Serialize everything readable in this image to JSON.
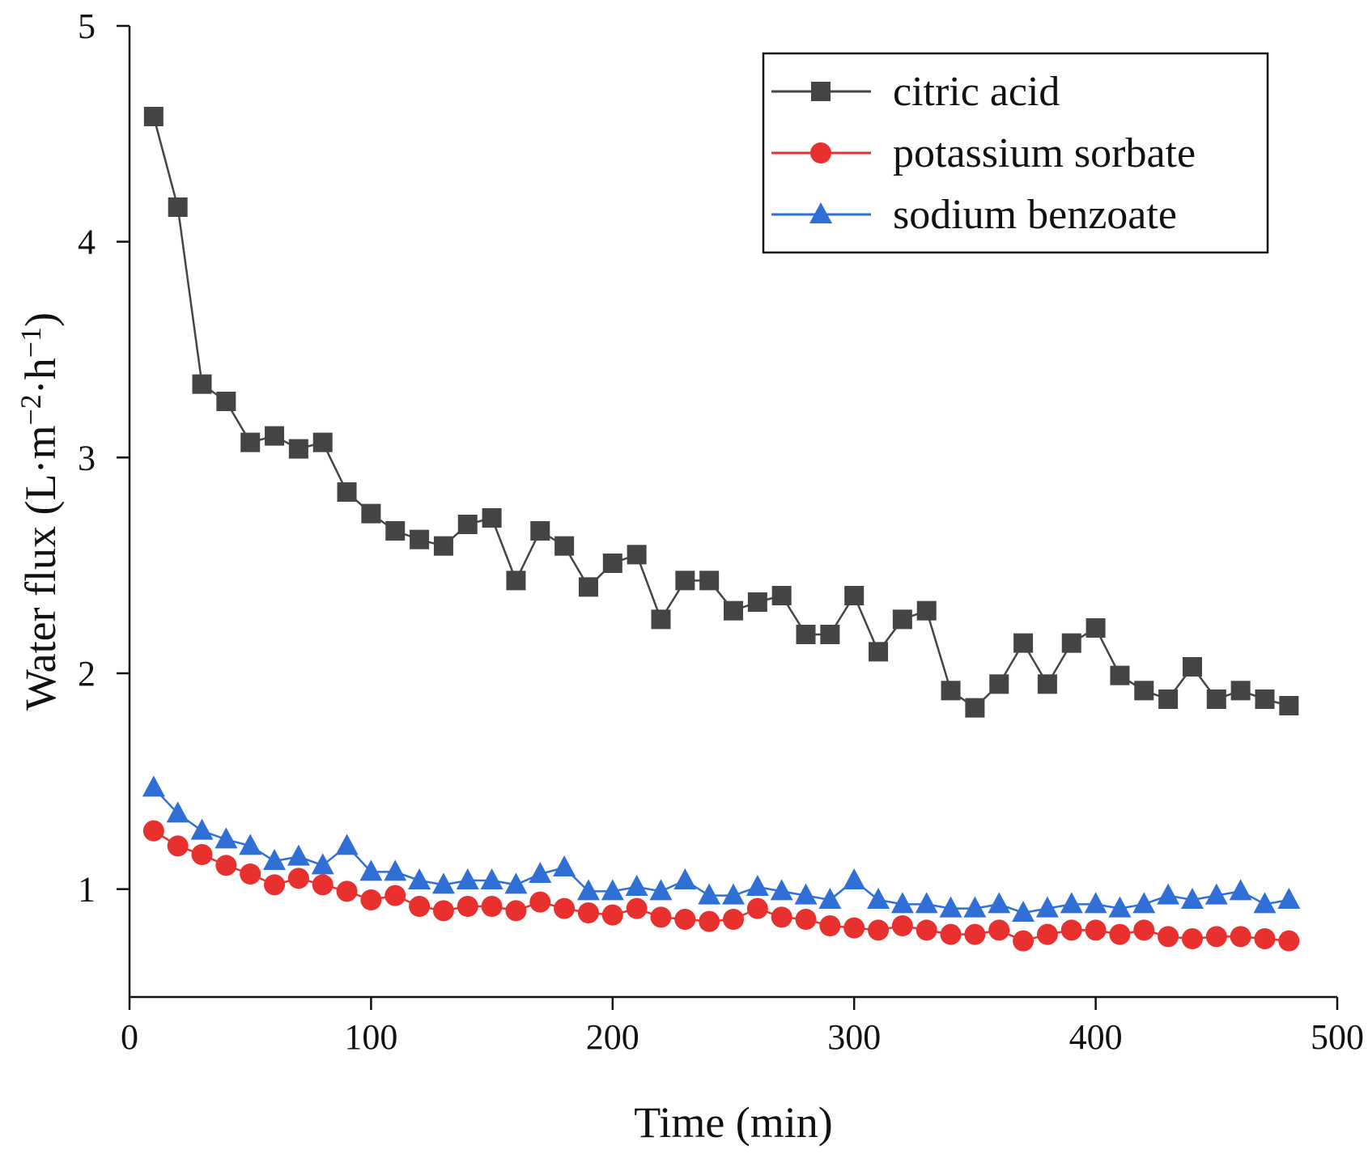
{
  "chart_data": {
    "type": "line",
    "title": "",
    "xlabel": "Time (min)",
    "ylabel_main": "Water flux (L·m",
    "ylabel_sup1": "−2",
    "ylabel_mid": "·h",
    "ylabel_sup2": "−1",
    "ylabel_end": ")",
    "xlim": [
      0,
      500
    ],
    "ylim": [
      0.5,
      5
    ],
    "xticks": [
      0,
      100,
      200,
      300,
      400,
      500
    ],
    "yticks": [
      1,
      2,
      3,
      4,
      5
    ],
    "xtick_labels": [
      "0",
      "100",
      "200",
      "300",
      "400",
      "500"
    ],
    "ytick_labels": [
      "1",
      "2",
      "3",
      "4",
      "5"
    ],
    "legend_position": "top-right",
    "x": [
      10,
      20,
      30,
      40,
      50,
      60,
      70,
      80,
      90,
      100,
      110,
      120,
      130,
      140,
      150,
      160,
      170,
      180,
      190,
      200,
      210,
      220,
      230,
      240,
      250,
      260,
      270,
      280,
      290,
      300,
      310,
      320,
      330,
      340,
      350,
      360,
      370,
      380,
      390,
      400,
      410,
      420,
      430,
      440,
      450,
      460,
      470,
      480
    ],
    "series": [
      {
        "name": "citric acid",
        "color": "#444444",
        "marker": "square",
        "values": [
          4.58,
          4.16,
          3.34,
          3.26,
          3.07,
          3.1,
          3.04,
          3.07,
          2.84,
          2.74,
          2.66,
          2.62,
          2.59,
          2.69,
          2.72,
          2.43,
          2.66,
          2.59,
          2.4,
          2.51,
          2.55,
          2.25,
          2.43,
          2.43,
          2.29,
          2.33,
          2.36,
          2.18,
          2.18,
          2.36,
          2.1,
          2.25,
          2.29,
          1.92,
          1.84,
          1.95,
          2.14,
          1.95,
          2.14,
          2.21,
          1.99,
          1.92,
          1.88,
          2.03,
          1.88,
          1.92,
          1.88,
          1.85
        ]
      },
      {
        "name": "potassium sorbate",
        "color": "#e8302e",
        "marker": "circle",
        "values": [
          1.27,
          1.2,
          1.16,
          1.11,
          1.07,
          1.02,
          1.05,
          1.02,
          0.99,
          0.95,
          0.97,
          0.92,
          0.9,
          0.92,
          0.92,
          0.9,
          0.94,
          0.91,
          0.89,
          0.88,
          0.91,
          0.87,
          0.86,
          0.85,
          0.86,
          0.91,
          0.87,
          0.86,
          0.83,
          0.82,
          0.81,
          0.83,
          0.81,
          0.79,
          0.79,
          0.81,
          0.76,
          0.79,
          0.81,
          0.81,
          0.79,
          0.81,
          0.78,
          0.77,
          0.78,
          0.78,
          0.77,
          0.76
        ]
      },
      {
        "name": "sodium benzoate",
        "color": "#2f6fd6",
        "marker": "triangle",
        "values": [
          1.47,
          1.35,
          1.27,
          1.23,
          1.2,
          1.13,
          1.15,
          1.11,
          1.2,
          1.08,
          1.08,
          1.04,
          1.02,
          1.04,
          1.04,
          1.02,
          1.07,
          1.1,
          0.99,
          0.99,
          1.01,
          0.99,
          1.04,
          0.97,
          0.97,
          1.01,
          0.99,
          0.97,
          0.95,
          1.04,
          0.95,
          0.93,
          0.93,
          0.91,
          0.91,
          0.93,
          0.89,
          0.91,
          0.93,
          0.93,
          0.91,
          0.93,
          0.97,
          0.95,
          0.97,
          0.99,
          0.93,
          0.95
        ]
      }
    ]
  }
}
